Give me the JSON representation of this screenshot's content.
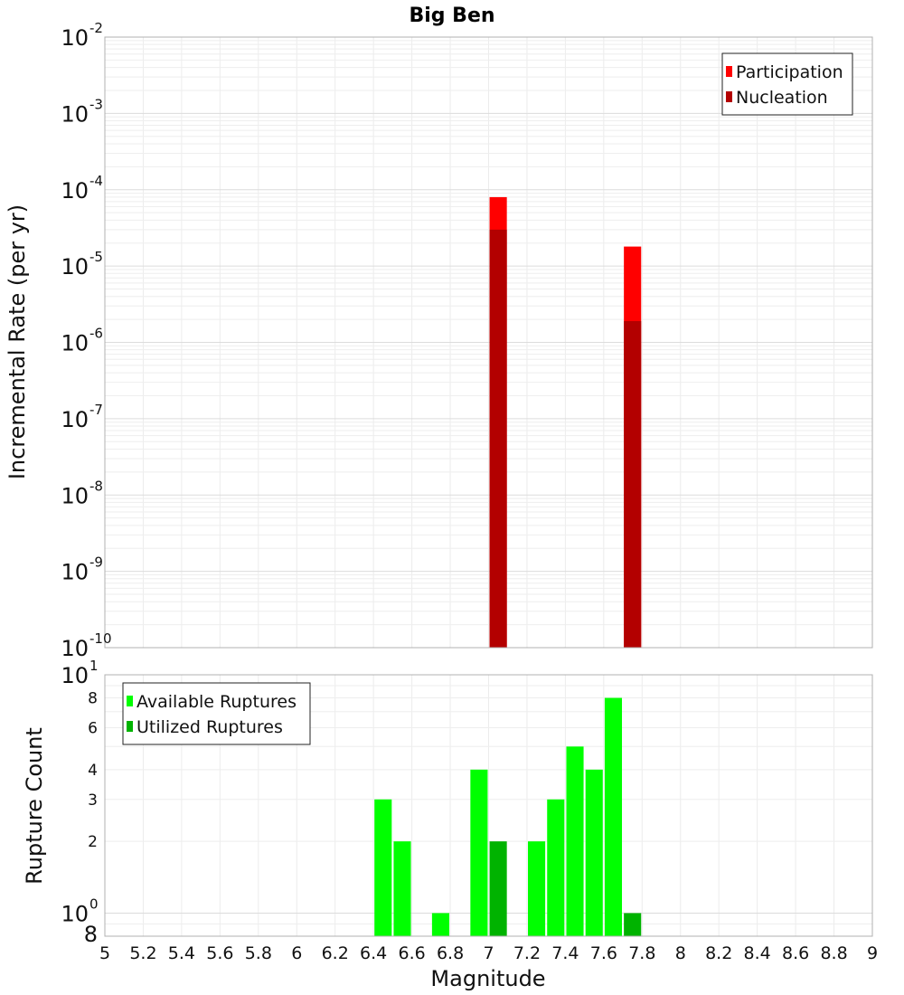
{
  "chart_data": [
    {
      "type": "bar",
      "title": "Big Ben",
      "ylabel": "Incremental Rate (per yr)",
      "yscale": "log",
      "ylim": [
        1e-10,
        0.01
      ],
      "xlim": [
        5,
        9
      ],
      "bar_width": 0.09,
      "y_major_ticks": [
        {
          "base": "10",
          "exp": "-10",
          "v": 1e-10
        },
        {
          "base": "10",
          "exp": "-9",
          "v": 1e-09
        },
        {
          "base": "10",
          "exp": "-8",
          "v": 1e-08
        },
        {
          "base": "10",
          "exp": "-7",
          "v": 1e-07
        },
        {
          "base": "10",
          "exp": "-6",
          "v": 1e-06
        },
        {
          "base": "10",
          "exp": "-5",
          "v": 1e-05
        },
        {
          "base": "10",
          "exp": "-4",
          "v": 0.0001
        },
        {
          "base": "10",
          "exp": "-3",
          "v": 0.001
        },
        {
          "base": "10",
          "exp": "-2",
          "v": 0.01
        }
      ],
      "legend_position": "top-right",
      "series": [
        {
          "name": "Participation",
          "color": "#ff0000",
          "x": [
            7.05,
            7.75
          ],
          "values": [
            8e-05,
            1.8e-05
          ]
        },
        {
          "name": "Nucleation",
          "color": "#b30000",
          "x": [
            7.05,
            7.75
          ],
          "values": [
            3e-05,
            1.9e-06
          ]
        }
      ]
    },
    {
      "type": "bar",
      "ylabel": "Rupture Count",
      "xlabel": "Magnitude",
      "yscale": "log",
      "ylim": [
        0.8,
        10
      ],
      "xlim": [
        5,
        9
      ],
      "bar_width": 0.09,
      "x_ticks": [
        "5",
        "5.2",
        "5.4",
        "5.6",
        "5.8",
        "6",
        "6.2",
        "6.4",
        "6.6",
        "6.8",
        "7",
        "7.2",
        "7.4",
        "7.6",
        "7.8",
        "8",
        "8.2",
        "8.4",
        "8.6",
        "8.8",
        "9"
      ],
      "y_major_ticks": [
        {
          "base": "10",
          "exp": "0",
          "v": 1
        },
        {
          "base": "10",
          "exp": "1",
          "v": 10
        }
      ],
      "y_minor_ticks": [
        {
          "label": "8",
          "v": 0.8
        },
        {
          "label": "2",
          "v": 2
        },
        {
          "label": "3",
          "v": 3
        },
        {
          "label": "4",
          "v": 4
        },
        {
          "label": "6",
          "v": 6
        },
        {
          "label": "8",
          "v": 8
        }
      ],
      "legend_position": "top-left",
      "series": [
        {
          "name": "Available Ruptures",
          "color": "#00ff00",
          "x": [
            6.45,
            6.55,
            6.75,
            6.95,
            7.25,
            7.35,
            7.45,
            7.55,
            7.65
          ],
          "values": [
            3,
            2,
            1,
            4,
            2,
            3,
            5,
            4,
            8
          ]
        },
        {
          "name": "Utilized Ruptures",
          "color": "#00b300",
          "x": [
            7.05,
            7.75
          ],
          "values": [
            2,
            1
          ]
        }
      ]
    }
  ]
}
